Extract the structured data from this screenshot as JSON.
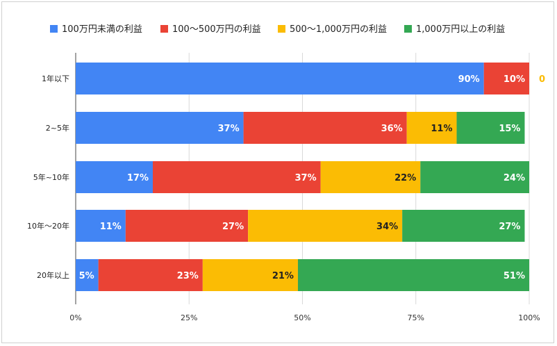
{
  "chart_data": {
    "type": "bar",
    "orientation": "horizontal",
    "stacked": "percent",
    "categories": [
      "1年以下",
      "2~5年",
      "5年~10年",
      "10年〜20年",
      "20年以上"
    ],
    "series": [
      {
        "name": "100万円未満の利益",
        "color": "#4285f4",
        "values": [
          90,
          37,
          17,
          11,
          5
        ],
        "labels": [
          "90%",
          "37%",
          "17%",
          "11%",
          "5%"
        ],
        "label_color": "#ffffff"
      },
      {
        "name": "100〜500万円の利益",
        "color": "#ea4335",
        "values": [
          10,
          36,
          37,
          27,
          23
        ],
        "labels": [
          "10%",
          "36%",
          "37%",
          "27%",
          "23%"
        ],
        "label_color": "#ffffff"
      },
      {
        "name": "500〜1,000万円の利益",
        "color": "#fbbc04",
        "values": [
          0,
          11,
          22,
          34,
          21
        ],
        "labels": [
          "0",
          "11%",
          "22%",
          "34%",
          "21%"
        ],
        "label_color": "#222222"
      },
      {
        "name": "1,000万円以上の利益",
        "color": "#34a853",
        "values": [
          0,
          15,
          24,
          27,
          51
        ],
        "labels": [
          "",
          "15%",
          "24%",
          "27%",
          "51%"
        ],
        "label_color": "#ffffff"
      }
    ],
    "x_ticks": [
      "0%",
      "25%",
      "50%",
      "75%",
      "100%"
    ],
    "xlim": [
      0,
      100
    ],
    "grid": true,
    "legend_position": "top"
  }
}
